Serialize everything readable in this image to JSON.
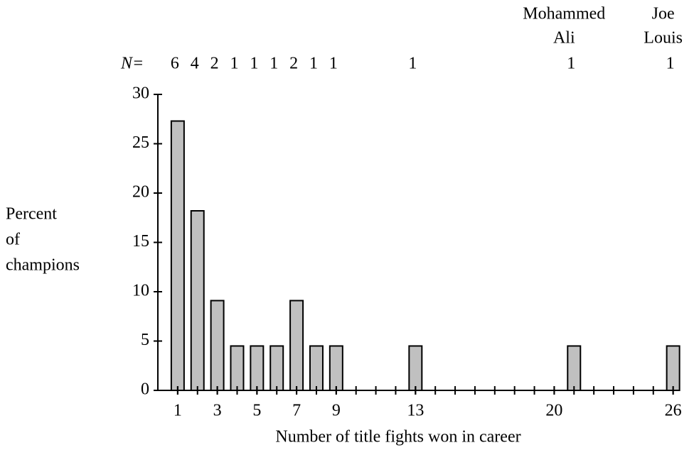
{
  "chart_data": {
    "type": "bar",
    "xlabel": "Number of title fights won in career",
    "ylabel": [
      "Percent",
      "of",
      "champions"
    ],
    "n_label": "N=",
    "x": [
      1,
      2,
      3,
      4,
      5,
      6,
      7,
      8,
      9,
      13,
      21,
      26
    ],
    "values": [
      27.3,
      18.2,
      9.1,
      4.5,
      4.5,
      4.5,
      9.1,
      4.5,
      4.5,
      4.5,
      4.5,
      4.5
    ],
    "counts": [
      6,
      4,
      2,
      1,
      1,
      1,
      2,
      1,
      1,
      1,
      1,
      1
    ],
    "annotations": [
      {
        "lines": [
          "Mohammed",
          "Ali"
        ],
        "x": 21
      },
      {
        "lines": [
          "Joe",
          "Louis"
        ],
        "x": 26
      }
    ],
    "color": "#c0c0c0",
    "xlim": [
      0,
      26.3
    ],
    "xticks": [
      1,
      3,
      5,
      7,
      9,
      13,
      20,
      26
    ],
    "xminorticks": [
      1,
      2,
      3,
      4,
      5,
      6,
      7,
      8,
      9,
      10,
      11,
      12,
      13,
      14,
      15,
      16,
      17,
      18,
      19,
      20,
      21,
      22,
      23,
      24,
      25,
      26
    ],
    "ylim": [
      0,
      30
    ],
    "yticks": [
      0,
      5,
      10,
      15,
      20,
      25,
      30
    ]
  }
}
